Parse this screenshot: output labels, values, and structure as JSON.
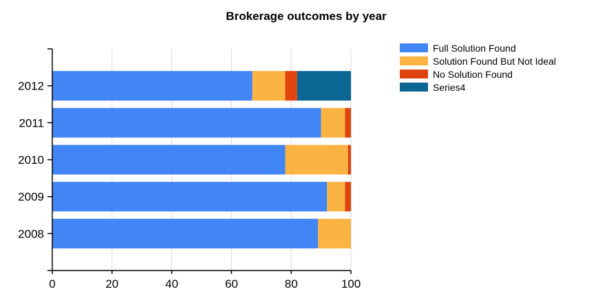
{
  "chart_data": {
    "type": "bar",
    "orientation": "horizontal",
    "stacked": true,
    "title": "Brokerage outcomes by year",
    "xlabel": "",
    "ylabel": "",
    "categories": [
      "2008",
      "2009",
      "2010",
      "2011",
      "2012"
    ],
    "series": [
      {
        "name": "Full Solution Found",
        "color": "#4285f4",
        "values": [
          89,
          92,
          78,
          90,
          67
        ]
      },
      {
        "name": "Solution Found But Not Ideal",
        "color": "#fbb441",
        "values": [
          11,
          6,
          21,
          8,
          11
        ]
      },
      {
        "name": "No Solution Found",
        "color": "#e0440e",
        "values": [
          0,
          2,
          1,
          2,
          4
        ]
      },
      {
        "name": "Series4",
        "color": "#0b6694",
        "values": [
          0,
          0,
          0,
          0,
          18
        ]
      }
    ],
    "xlim": [
      0,
      100
    ],
    "xticks": [
      0,
      20,
      40,
      60,
      80,
      100
    ],
    "grid": true,
    "legend_position": "right"
  }
}
